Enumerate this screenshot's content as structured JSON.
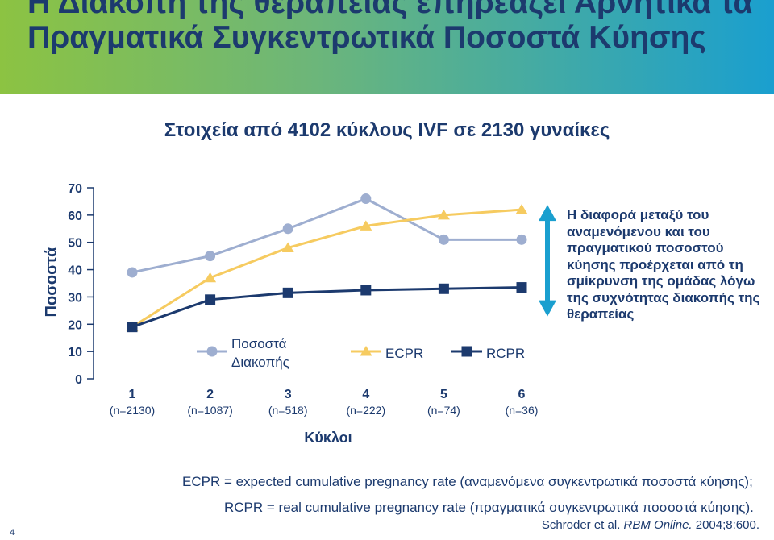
{
  "header": {
    "title": "Η Διακοπή της θεραπείας επηρεάζει Αρνητικά τα Πραγματικά Συγκεντρωτικά Ποσοστά Κύησης",
    "subtitle": "Στοιχεία από 4102 κύκλους IVF σε 2130 γυναίκες"
  },
  "chart_data": {
    "type": "line",
    "categories": [
      "1",
      "2",
      "3",
      "4",
      "5",
      "6"
    ],
    "category_sublabels": [
      "(n=2130)",
      "(n=1087)",
      "(n=518)",
      "(n=222)",
      "(n=74)",
      "(n=36)"
    ],
    "xlabel": "Κύκλοι",
    "ylabel": "Ποσοστά",
    "ylim": [
      0,
      70
    ],
    "yticks": [
      0,
      10,
      20,
      30,
      40,
      50,
      60,
      70
    ],
    "series": [
      {
        "name": "Ποσοστά Διακοπής",
        "name_lines": [
          "Ποσοστά",
          "Διακοπής"
        ],
        "marker": "circle",
        "color": "#9eaed0",
        "values": [
          39,
          45,
          55,
          66,
          51,
          51
        ]
      },
      {
        "name": "ECPR",
        "marker": "triangle",
        "color": "#f6cb60",
        "values": [
          19,
          37,
          48,
          56,
          60,
          62
        ]
      },
      {
        "name": "RCPR",
        "marker": "square",
        "color": "#1c3a6e",
        "values": [
          19,
          29,
          31.5,
          32.5,
          33,
          33.5
        ]
      }
    ],
    "legend_position": "bottom-inside"
  },
  "annotation": {
    "text": "Η διαφορά μεταξύ του αναμενόμενου και του πραγματικού ποσοστού κύησης προέρχεται από τη σμίκρυνση της ομάδας λόγω της συχνότητας διακοπής της θεραπείας",
    "arrow_color": "#1a9fcf"
  },
  "footnotes": {
    "ecpr": "ECPR = expected cumulative pregnancy rate (αναμενόμενα συγκεντρωτικά ποσοστά κύησης);",
    "rcpr": "RCPR = real cumulative pregnancy rate (πραγματικά συγκεντρωτικά ποσοστά κύησης).",
    "reference_authors": "Schroder et al.",
    "reference_journal": "RBM Online.",
    "reference_rest": "2004;8:600."
  },
  "page_number": "4",
  "colors": {
    "dark_blue": "#1c3a6e",
    "gray_blue": "#9eaed0",
    "yellow": "#f6cb60",
    "cyan": "#1a9fcf"
  }
}
